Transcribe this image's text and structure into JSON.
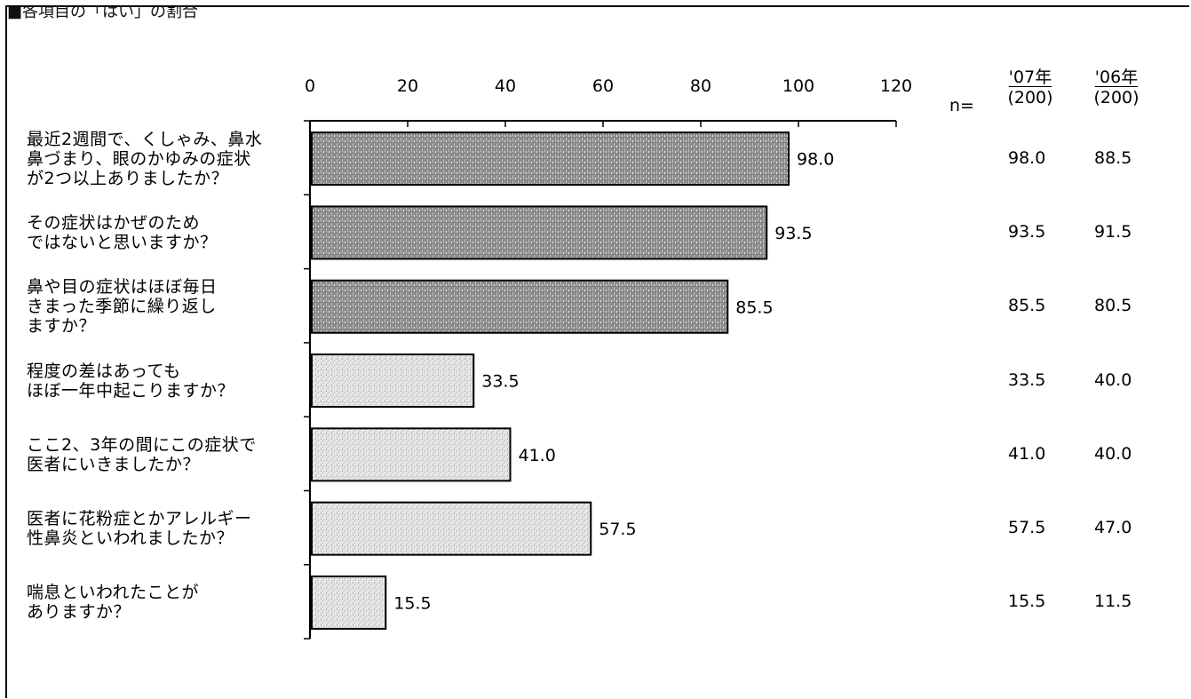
{
  "header": {
    "cut_title": "■各項目の「はい」の割合"
  },
  "chart_data": {
    "type": "bar",
    "orientation": "horizontal",
    "xlim": [
      0,
      120
    ],
    "ticks": [
      0,
      20,
      40,
      60,
      80,
      100,
      120
    ],
    "categories": [
      "最近2週間で、くしゃみ、鼻水\n鼻づまり、眼のかゆみの症状\nが2つ以上ありましたか？",
      "その症状はかぜのため\nではないと思いますか？",
      "鼻や目の症状はほぼ毎日\nきまった季節に繰り返し\nますか？",
      "程度の差はあっても\nほぼ一年中起こりますか？",
      "ここ2、3年の間にこの症状で\n医者にいきましたか？",
      "医者に花粉症とかアレルギー\n性鼻炎といわれましたか？",
      "喘息といわれたことが\nありますか？"
    ],
    "values": [
      98.0,
      93.5,
      85.5,
      33.5,
      41.0,
      57.5,
      15.5
    ],
    "value_labels": [
      "98.0",
      "93.5",
      "85.5",
      "33.5",
      "41.0",
      "57.5",
      "15.5"
    ],
    "bar_shading": [
      "dark",
      "dark",
      "dark",
      "light",
      "light",
      "light",
      "light"
    ]
  },
  "table": {
    "n_label": "n=",
    "columns": [
      {
        "year": "'07年",
        "n": "(200)",
        "values": [
          "98.0",
          "93.5",
          "85.5",
          "33.5",
          "41.0",
          "57.5",
          "15.5"
        ]
      },
      {
        "year": "'06年",
        "n": "(200)",
        "values": [
          "88.5",
          "91.5",
          "80.5",
          "40.0",
          "40.0",
          "47.0",
          "11.5"
        ]
      }
    ]
  },
  "colors": {
    "bar_dark": "#8c8c8c",
    "bar_light": "#d2d2d2",
    "axis": "#000000"
  }
}
